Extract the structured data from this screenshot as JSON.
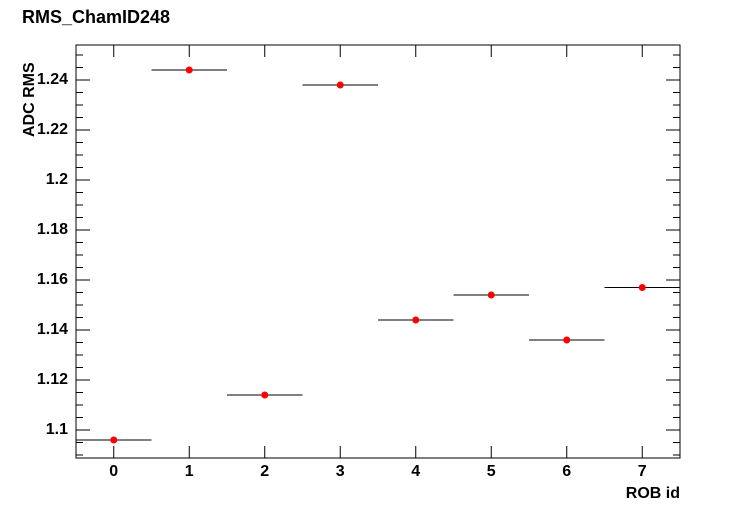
{
  "chart_data": {
    "type": "scatter",
    "title": "RMS_ChamID248",
    "x_label": "ROB id",
    "y_label": "ADC RMS",
    "x": [
      0,
      1,
      2,
      3,
      4,
      5,
      6,
      7
    ],
    "xerr": [
      0.5,
      0.5,
      0.5,
      0.5,
      0.5,
      0.5,
      0.5,
      0.5
    ],
    "values": [
      1.096,
      1.244,
      1.114,
      1.238,
      1.144,
      1.154,
      1.136,
      1.157
    ],
    "color": "#ff0000",
    "xlim": [
      -0.5,
      7.5
    ],
    "xticks": [
      0,
      1,
      2,
      3,
      4,
      5,
      6,
      7
    ],
    "ylim": [
      1.0888,
      1.254
    ],
    "yticks": [
      1.1,
      1.12,
      1.14,
      1.16,
      1.18,
      1.2,
      1.22,
      1.24
    ]
  }
}
